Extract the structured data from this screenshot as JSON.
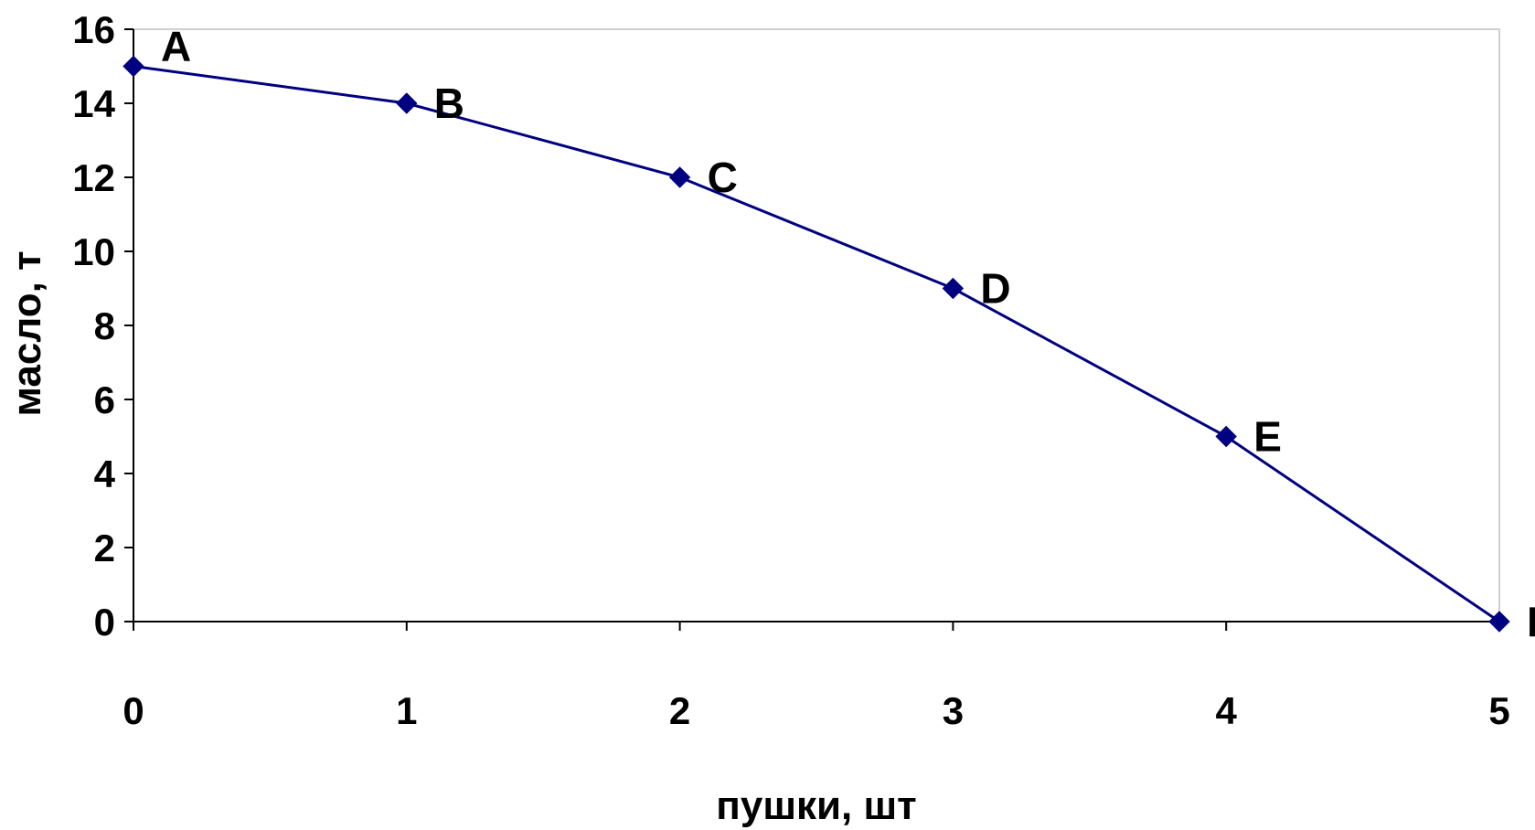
{
  "chart_data": {
    "type": "line",
    "title": "",
    "xlabel": "пушки, шт",
    "ylabel": "масло, т",
    "x": [
      0,
      1,
      2,
      3,
      4,
      5
    ],
    "xlim": [
      0,
      5
    ],
    "ylim": [
      0,
      16
    ],
    "xticks": [
      "0",
      "1",
      "2",
      "3",
      "4",
      "5"
    ],
    "yticks": [
      "0",
      "2",
      "4",
      "6",
      "8",
      "10",
      "12",
      "14",
      "16"
    ],
    "grid": false,
    "legend": "none",
    "series": [
      {
        "values": [
          15,
          14,
          12,
          9,
          5,
          0
        ],
        "point_labels": [
          "A",
          "B",
          "C",
          "D",
          "E",
          "F"
        ],
        "color": "#000080",
        "marker": "diamond"
      }
    ]
  }
}
